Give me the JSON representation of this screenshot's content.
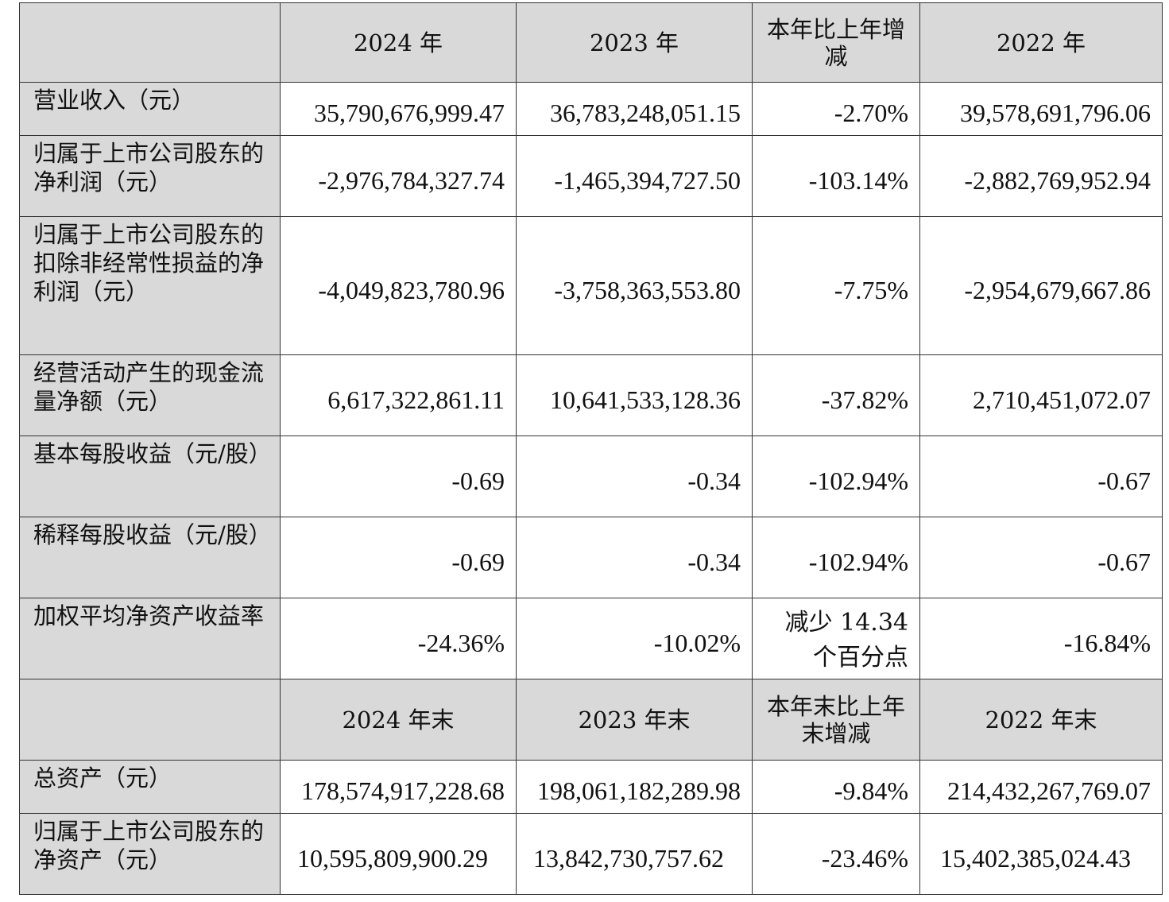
{
  "header_top": {
    "label": "",
    "col_2024": "2024 年",
    "col_2023": "2023 年",
    "col_change": "本年比上年增减",
    "col_2022": "2022 年"
  },
  "rows_top": [
    {
      "label": "营业收入（元）",
      "v2024": "35,790,676,999.47",
      "v2023": "36,783,248,051.15",
      "change": "-2.70%",
      "v2022": "39,578,691,796.06"
    },
    {
      "label": "归属于上市公司股东的净利润（元）",
      "v2024": "-2,976,784,327.74",
      "v2023": "-1,465,394,727.50",
      "change": "-103.14%",
      "v2022": "-2,882,769,952.94"
    },
    {
      "label": "归属于上市公司股东的扣除非经常性损益的净利润（元）",
      "v2024": "-4,049,823,780.96",
      "v2023": "-3,758,363,553.80",
      "change": "-7.75%",
      "v2022": "-2,954,679,667.86"
    },
    {
      "label": "经营活动产生的现金流量净额（元）",
      "v2024": "6,617,322,861.11",
      "v2023": "10,641,533,128.36",
      "change": "-37.82%",
      "v2022": "2,710,451,072.07"
    },
    {
      "label": "基本每股收益（元/股）",
      "v2024": "-0.69",
      "v2023": "-0.34",
      "change": "-102.94%",
      "v2022": "-0.67"
    },
    {
      "label": "稀释每股收益（元/股）",
      "v2024": "-0.69",
      "v2023": "-0.34",
      "change": "-102.94%",
      "v2022": "-0.67"
    },
    {
      "label": "加权平均净资产收益率",
      "v2024": "-24.36%",
      "v2023": "-10.02%",
      "change_line1": "减少 14.34",
      "change_line2": "个百分点",
      "v2022": "-16.84%"
    }
  ],
  "header_bottom": {
    "label": "",
    "col_2024": "2024 年末",
    "col_2023": "2023 年末",
    "col_change": "本年末比上年末增减",
    "col_2022": "2022 年末"
  },
  "rows_bottom": [
    {
      "label": "总资产（元）",
      "v2024": "178,574,917,228.68",
      "v2023": "198,061,182,289.98",
      "change": "-9.84%",
      "v2022": "214,432,267,769.07"
    },
    {
      "label": "归属于上市公司股东的净资产（元）",
      "v2024": "10,595,809,900.29",
      "v2023": "13,842,730,757.62",
      "change": "-23.46%",
      "v2022": "15,402,385,024.43"
    }
  ]
}
